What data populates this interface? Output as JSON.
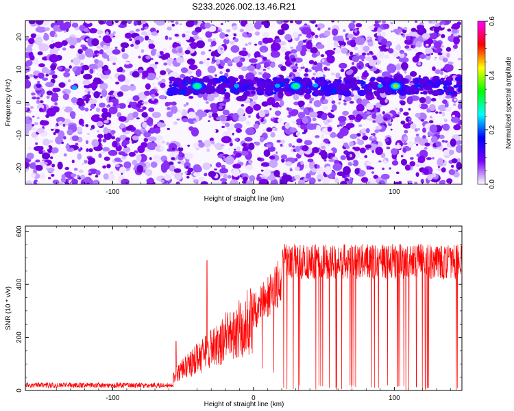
{
  "title": "S233.2026.002.13.46.R21",
  "chart_data": [
    {
      "type": "heatmap",
      "xlabel": "Height of straight line (km)",
      "ylabel": "Frequency (Hz)",
      "xlim": [
        -162,
        148
      ],
      "ylim": [
        -25,
        25
      ],
      "xticks": [
        -100,
        0,
        100
      ],
      "yticks": [
        20,
        10,
        0,
        -10,
        -20
      ],
      "colorbar": {
        "label": "Normalized spectral amplitude",
        "range": [
          0.0,
          0.6
        ],
        "ticks": [
          0.0,
          0.2,
          0.4,
          0.6
        ],
        "colors": [
          "#ffffff",
          "#7b00ff",
          "#0000ff",
          "#00ffff",
          "#00ff00",
          "#ffff00",
          "#ff0000",
          "#ff00ff"
        ]
      },
      "features": [
        {
          "description": "signal band",
          "x_range": [
            -60,
            148
          ],
          "frequency_hz": 5
        },
        {
          "peak_x": -40,
          "peak_y": 5,
          "amplitude": 0.25
        },
        {
          "peak_x": 30,
          "peak_y": 5,
          "amplitude": 0.3
        },
        {
          "peak_x": 101,
          "peak_y": 5,
          "amplitude": 0.4
        }
      ]
    },
    {
      "type": "line",
      "xlabel": "Height of straight line (km)",
      "ylabel": "SNR (10 * v/v)",
      "xlim": [
        -162,
        148
      ],
      "ylim": [
        0,
        620
      ],
      "xticks": [
        -100,
        0,
        100
      ],
      "yticks": [
        0,
        200,
        400,
        600
      ],
      "series_color": "#ff0000",
      "segments": [
        {
          "x_range": [
            -162,
            -57
          ],
          "snr_mean": 20,
          "spread": 20
        },
        {
          "x": -55,
          "snr": 185
        },
        {
          "x": -33,
          "snr": 490
        },
        {
          "x_range": [
            -57,
            0
          ],
          "snr_mean_start": 60,
          "snr_mean_end": 300
        },
        {
          "x_range": [
            0,
            20
          ],
          "snr_mean_start": 300,
          "snr_mean_end": 430
        },
        {
          "x_range": [
            20,
            148
          ],
          "snr_mean": 490,
          "spread": 70,
          "dropouts_to": 0
        }
      ]
    }
  ]
}
